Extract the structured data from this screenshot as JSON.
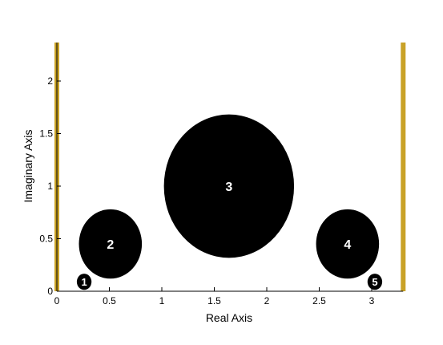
{
  "chart_data": {
    "type": "scatter",
    "title": "",
    "xlabel": "Real Axis",
    "ylabel": "Imaginary Axis",
    "xlim": [
      0,
      3.3
    ],
    "ylim": [
      0,
      2.3
    ],
    "xticks": [
      0,
      0.5,
      1,
      1.5,
      2,
      2.5,
      3
    ],
    "xtick_labels": [
      "0",
      "0.5",
      "1",
      "1.5",
      "2",
      "2.5",
      "3"
    ],
    "yticks": [
      0,
      0.5,
      1,
      1.5,
      2
    ],
    "ytick_labels": [
      "0",
      "0.5",
      "1",
      "1.5",
      "2"
    ],
    "grid": false,
    "boundaries": {
      "color": "#C9A227",
      "x": [
        0,
        3.3
      ]
    },
    "disks": [
      {
        "label": "1",
        "x": 0.26,
        "y": 0.09,
        "r": 0.07
      },
      {
        "label": "2",
        "x": 0.51,
        "y": 0.45,
        "r": 0.3
      },
      {
        "label": "3",
        "x": 1.64,
        "y": 1.0,
        "r": 0.62
      },
      {
        "label": "4",
        "x": 2.77,
        "y": 0.45,
        "r": 0.3
      },
      {
        "label": "5",
        "x": 3.03,
        "y": 0.09,
        "r": 0.07
      }
    ],
    "disk_color": "#000000",
    "label_color": "#ffffff"
  }
}
